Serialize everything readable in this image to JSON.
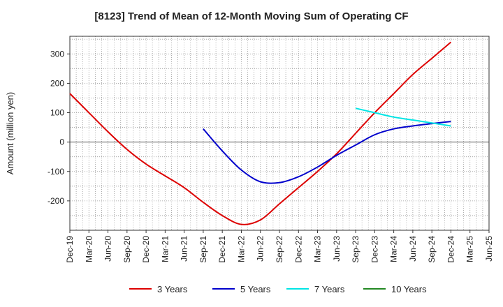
{
  "chart_data": {
    "type": "line",
    "title": "[8123]  Trend of Mean of 12-Month Moving Sum of Operating CF",
    "xlabel": "",
    "ylabel": "Amount (million yen)",
    "ylim": [
      -300,
      360
    ],
    "yticks": [
      -200,
      -100,
      0,
      100,
      200,
      300
    ],
    "x_categories": [
      "Dec-19",
      "Mar-20",
      "Jun-20",
      "Sep-20",
      "Dec-20",
      "Mar-21",
      "Jun-21",
      "Sep-21",
      "Dec-21",
      "Mar-22",
      "Jun-22",
      "Sep-22",
      "Dec-22",
      "Mar-23",
      "Jun-23",
      "Sep-23",
      "Dec-23",
      "Mar-24",
      "Jun-24",
      "Sep-24",
      "Dec-24",
      "Mar-25"
    ],
    "x_tick_labels": [
      "Dec-19",
      "Mar-20",
      "Jun-20",
      "Sep-20",
      "Dec-20",
      "Mar-21",
      "Jun-21",
      "Sep-21",
      "Dec-21",
      "Mar-22",
      "Jun-22",
      "Sep-22",
      "Dec-22",
      "Mar-23",
      "Jun-23",
      "Sep-23",
      "Dec-23",
      "Mar-24",
      "Jun-24",
      "Sep-24",
      "Dec-24",
      "Mar-25",
      "Jun-25"
    ],
    "grid": true,
    "legend_position": "bottom",
    "series": [
      {
        "name": "3 Years",
        "color": "#dd0000",
        "values": [
          165,
          100,
          35,
          -25,
          -75,
          -115,
          -155,
          -205,
          -250,
          -280,
          -265,
          -210,
          -155,
          -100,
          -40,
          30,
          100,
          165,
          230,
          285,
          340,
          null
        ]
      },
      {
        "name": "5 Years",
        "color": "#0000cc",
        "values": [
          null,
          null,
          null,
          null,
          null,
          null,
          null,
          45,
          -30,
          -95,
          -135,
          -138,
          -118,
          -85,
          -45,
          -10,
          25,
          45,
          55,
          63,
          70,
          null
        ]
      },
      {
        "name": "7 Years",
        "color": "#00e5e5",
        "values": [
          null,
          null,
          null,
          null,
          null,
          null,
          null,
          null,
          null,
          null,
          null,
          null,
          null,
          null,
          null,
          115,
          100,
          85,
          75,
          65,
          55,
          null
        ]
      },
      {
        "name": "10 Years",
        "color": "#228822",
        "values": [
          null,
          null,
          null,
          null,
          null,
          null,
          null,
          null,
          null,
          null,
          null,
          null,
          null,
          null,
          null,
          null,
          null,
          null,
          null,
          null,
          null,
          null
        ]
      }
    ]
  }
}
